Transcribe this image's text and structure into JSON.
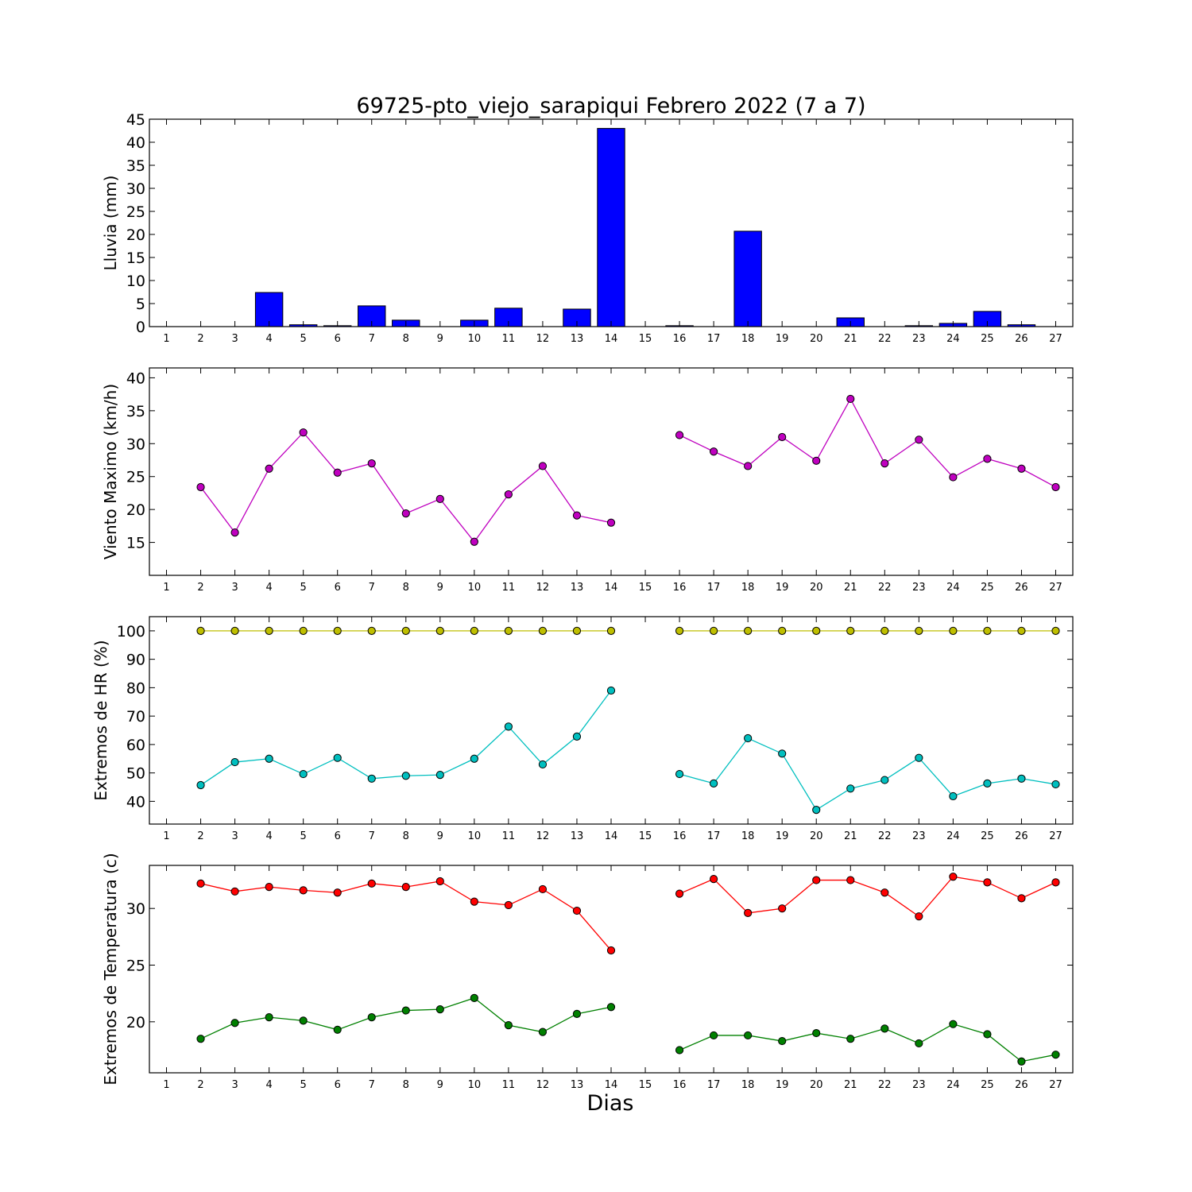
{
  "chart_data": {
    "title": "69725-pto_viejo_sarapiqui Febrero 2022  (7 a 7)",
    "xlabel": "Dias",
    "x_ticks": [
      1,
      2,
      3,
      4,
      5,
      6,
      7,
      8,
      9,
      10,
      11,
      12,
      13,
      14,
      15,
      16,
      17,
      18,
      19,
      20,
      21,
      22,
      23,
      24,
      25,
      26,
      27
    ],
    "panels": [
      {
        "type": "bar",
        "ylabel": "Lluvia (mm)",
        "ylim": [
          0,
          45
        ],
        "yticks": [
          0,
          5,
          10,
          15,
          20,
          25,
          30,
          35,
          40,
          45
        ],
        "grid": false,
        "series": [
          {
            "color": "#0000ff",
            "x": [
              2,
              3,
              4,
              5,
              6,
              7,
              8,
              9,
              10,
              11,
              12,
              13,
              14,
              15,
              16,
              17,
              18,
              19,
              20,
              21,
              22,
              23,
              24,
              25,
              26
            ],
            "values": [
              0,
              0,
              7.4,
              0.4,
              0.2,
              4.5,
              1.4,
              0,
              1.4,
              4.0,
              0,
              3.8,
              43.0,
              0,
              0.2,
              0,
              20.7,
              0,
              0,
              1.9,
              0,
              0.2,
              0.7,
              3.3,
              0.4
            ]
          }
        ]
      },
      {
        "type": "line",
        "ylabel": "Viento Maximo (km/h)",
        "ylim": [
          10,
          41.5
        ],
        "yticks": [
          15,
          20,
          25,
          30,
          35,
          40
        ],
        "grid": false,
        "series": [
          {
            "color": "#bf00bf",
            "x": [
              2,
              3,
              4,
              5,
              6,
              7,
              8,
              9,
              10,
              11,
              12,
              13,
              14,
              16,
              17,
              18,
              19,
              20,
              21,
              22,
              23,
              24,
              25,
              26,
              27
            ],
            "values": [
              23.4,
              16.5,
              26.2,
              31.7,
              25.6,
              27.0,
              19.4,
              21.6,
              15.1,
              22.3,
              26.6,
              19.1,
              18.0,
              31.3,
              28.8,
              26.6,
              31.0,
              27.4,
              36.8,
              27.0,
              30.6,
              24.9,
              27.7,
              26.2,
              23.4
            ]
          }
        ]
      },
      {
        "type": "line",
        "ylabel": "Extremos de HR (%)",
        "ylim": [
          32,
          105
        ],
        "yticks": [
          40,
          50,
          60,
          70,
          80,
          90,
          100
        ],
        "grid": false,
        "series": [
          {
            "color": "#bfbf00",
            "x": [
              2,
              3,
              4,
              5,
              6,
              7,
              8,
              9,
              10,
              11,
              12,
              13,
              14,
              16,
              17,
              18,
              19,
              20,
              21,
              22,
              23,
              24,
              25,
              26,
              27
            ],
            "values": [
              100,
              100,
              100,
              100,
              100,
              100,
              100,
              100,
              100,
              100,
              100,
              100,
              100,
              100,
              100,
              100,
              100,
              100,
              100,
              100,
              100,
              100,
              100,
              100,
              100
            ]
          },
          {
            "color": "#00bfbf",
            "x": [
              2,
              3,
              4,
              5,
              6,
              7,
              8,
              9,
              10,
              11,
              12,
              13,
              14,
              16,
              17,
              18,
              19,
              20,
              21,
              22,
              23,
              24,
              25,
              26,
              27
            ],
            "values": [
              45.7,
              53.8,
              55.0,
              49.6,
              55.3,
              48.0,
              49.0,
              49.3,
              55.0,
              66.3,
              53.0,
              62.8,
              79.0,
              49.6,
              46.3,
              62.2,
              56.8,
              37.0,
              44.5,
              47.5,
              55.3,
              41.8,
              46.3,
              48.0,
              46.0
            ]
          }
        ]
      },
      {
        "type": "line",
        "ylabel": "Extremos de Temperatura (c)",
        "ylim": [
          15.5,
          33.8
        ],
        "yticks": [
          20,
          25,
          30
        ],
        "grid": false,
        "series": [
          {
            "color": "#ff0000",
            "x": [
              2,
              3,
              4,
              5,
              6,
              7,
              8,
              9,
              10,
              11,
              12,
              13,
              14,
              16,
              17,
              18,
              19,
              20,
              21,
              22,
              23,
              24,
              25,
              26,
              27
            ],
            "values": [
              32.2,
              31.5,
              31.9,
              31.6,
              31.4,
              32.2,
              31.9,
              32.4,
              30.6,
              30.3,
              31.7,
              29.8,
              26.3,
              31.3,
              32.6,
              29.6,
              30.0,
              32.5,
              32.5,
              31.4,
              29.3,
              32.8,
              32.3,
              30.9,
              32.3
            ]
          },
          {
            "color": "#008000",
            "x": [
              2,
              3,
              4,
              5,
              6,
              7,
              8,
              9,
              10,
              11,
              12,
              13,
              14,
              16,
              17,
              18,
              19,
              20,
              21,
              22,
              23,
              24,
              25,
              26,
              27
            ],
            "values": [
              18.5,
              19.9,
              20.4,
              20.1,
              19.3,
              20.4,
              21.0,
              21.1,
              22.1,
              19.7,
              19.1,
              20.7,
              21.3,
              17.5,
              18.8,
              18.8,
              18.3,
              19.0,
              18.5,
              19.4,
              18.1,
              19.8,
              18.9,
              16.5,
              17.1
            ]
          }
        ]
      }
    ]
  }
}
